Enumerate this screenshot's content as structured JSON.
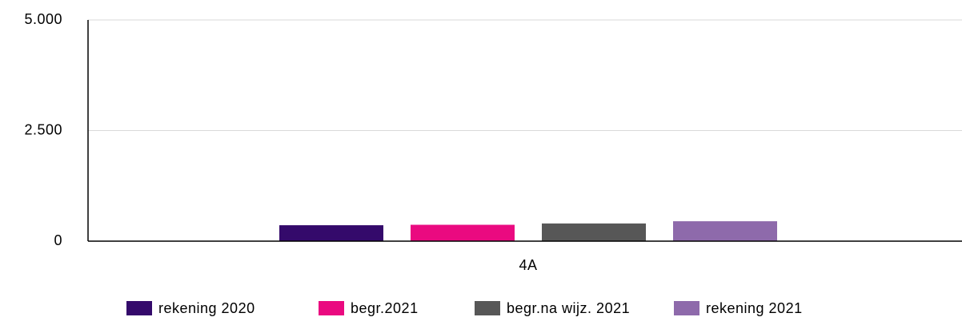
{
  "chart_data": {
    "type": "bar",
    "categories": [
      "4A"
    ],
    "series": [
      {
        "name": "rekening 2020",
        "color": "#340a6b",
        "values": [
          360
        ]
      },
      {
        "name": "begr.2021",
        "color": "#ea0a80",
        "values": [
          370
        ]
      },
      {
        "name": "begr.na wijz. 2021",
        "color": "#575757",
        "values": [
          400
        ]
      },
      {
        "name": "rekening 2021",
        "color": "#8e6aab",
        "values": [
          450
        ]
      }
    ],
    "ylim": [
      0,
      5000
    ],
    "yticks": [
      0,
      {
        "value": 2500,
        "label": "2.500"
      },
      {
        "value": 5000,
        "label": "5.000"
      }
    ],
    "grid": true
  }
}
